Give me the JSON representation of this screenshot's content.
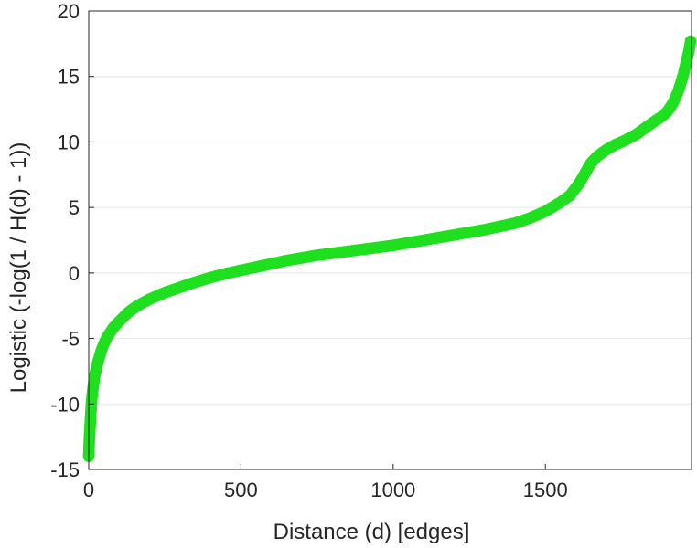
{
  "chart_data": {
    "type": "scatter",
    "title": "",
    "xlabel": "Distance (d) [edges]",
    "ylabel": "Logistic (-log(1 / H(d) - 1))",
    "xlim": [
      0,
      1980
    ],
    "ylim": [
      -15,
      20
    ],
    "xticks": [
      0,
      500,
      1000,
      1500
    ],
    "yticks": [
      -15,
      -10,
      -5,
      0,
      5,
      10,
      15,
      20
    ],
    "xtick_labels": [
      "0",
      "500",
      "1000",
      "1500"
    ],
    "ytick_labels": [
      "-15",
      "-10",
      "-5",
      "0",
      "5",
      "10",
      "15",
      "20"
    ],
    "grid": "horizontal",
    "legend": "none",
    "marker": "circle",
    "series_color": "#1ee01e",
    "series": [
      {
        "x": [
          0,
          2,
          4,
          6,
          8,
          10,
          15,
          20,
          30,
          40,
          50,
          60,
          80,
          100,
          130,
          160,
          200,
          250,
          300,
          350,
          400,
          450,
          500,
          550,
          600,
          650,
          700,
          750,
          800,
          850,
          900,
          950,
          1000,
          1050,
          1100,
          1150,
          1200,
          1250,
          1300,
          1350,
          1400,
          1450,
          1500,
          1550,
          1580,
          1610,
          1630,
          1650,
          1670,
          1700,
          1730,
          1760,
          1800,
          1830,
          1860,
          1880,
          1900,
          1920,
          1935,
          1945,
          1955,
          1962,
          1968,
          1972,
          1975,
          1977
        ],
        "y": [
          -14.0,
          -12.7,
          -11.9,
          -11.0,
          -10.3,
          -9.6,
          -8.6,
          -7.8,
          -6.8,
          -6.0,
          -5.4,
          -4.9,
          -4.2,
          -3.7,
          -3.0,
          -2.5,
          -2.0,
          -1.5,
          -1.1,
          -0.7,
          -0.35,
          -0.05,
          0.2,
          0.45,
          0.7,
          0.95,
          1.15,
          1.35,
          1.5,
          1.65,
          1.8,
          1.95,
          2.1,
          2.3,
          2.5,
          2.7,
          2.9,
          3.1,
          3.3,
          3.55,
          3.8,
          4.2,
          4.7,
          5.4,
          5.9,
          6.8,
          7.6,
          8.4,
          8.9,
          9.4,
          9.8,
          10.1,
          10.6,
          11.1,
          11.6,
          11.9,
          12.3,
          13.0,
          13.8,
          14.5,
          15.3,
          16.0,
          16.6,
          17.0,
          17.4,
          17.7
        ]
      }
    ]
  }
}
